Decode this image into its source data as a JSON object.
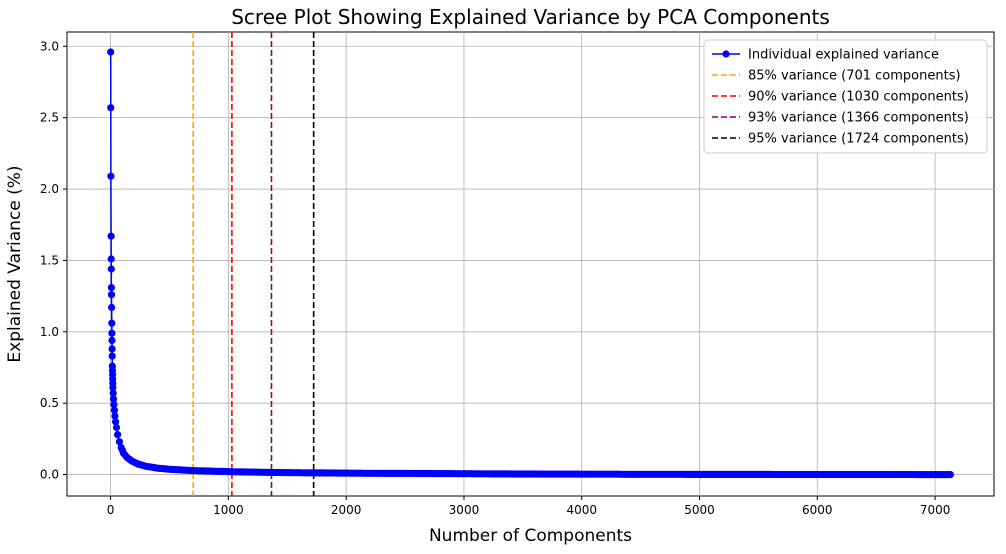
{
  "chart_data": {
    "type": "line",
    "title": "Scree Plot Showing Explained Variance by PCA Components",
    "xlabel": "Number of Components",
    "ylabel": "Explained Variance (%)",
    "xlim": [
      -370,
      7500
    ],
    "ylim": [
      -0.15,
      3.1
    ],
    "xticks": [
      0,
      1000,
      2000,
      3000,
      4000,
      5000,
      6000,
      7000
    ],
    "yticks": [
      0.0,
      0.5,
      1.0,
      1.5,
      2.0,
      2.5,
      3.0
    ],
    "grid": true,
    "legend_position": "top-right",
    "series": [
      {
        "name": "Individual explained variance",
        "color": "#0000ff",
        "marker": "circle",
        "points": [
          [
            1,
            2.96
          ],
          [
            2,
            2.57
          ],
          [
            3,
            2.09
          ],
          [
            4,
            1.67
          ],
          [
            5,
            1.51
          ],
          [
            6,
            1.44
          ],
          [
            7,
            1.31
          ],
          [
            8,
            1.26
          ],
          [
            9,
            1.17
          ],
          [
            10,
            1.06
          ],
          [
            11,
            0.99
          ],
          [
            12,
            0.94
          ],
          [
            13,
            0.88
          ],
          [
            14,
            0.83
          ],
          [
            15,
            0.76
          ],
          [
            16,
            0.73
          ],
          [
            17,
            0.7
          ],
          [
            18,
            0.67
          ],
          [
            19,
            0.64
          ],
          [
            20,
            0.61
          ],
          [
            22,
            0.57
          ],
          [
            25,
            0.53
          ],
          [
            28,
            0.49
          ],
          [
            32,
            0.45
          ],
          [
            37,
            0.41
          ],
          [
            43,
            0.37
          ],
          [
            50,
            0.33
          ],
          [
            60,
            0.28
          ],
          [
            75,
            0.23
          ],
          [
            90,
            0.19
          ],
          [
            110,
            0.15
          ],
          [
            140,
            0.12
          ],
          [
            180,
            0.095
          ],
          [
            230,
            0.075
          ],
          [
            300,
            0.058
          ],
          [
            400,
            0.045
          ],
          [
            500,
            0.037
          ],
          [
            701,
            0.028
          ],
          [
            1030,
            0.02
          ],
          [
            1366,
            0.015
          ],
          [
            1724,
            0.012
          ],
          [
            2200,
            0.009
          ],
          [
            2800,
            0.007
          ],
          [
            3500,
            0.004
          ],
          [
            4500,
            0.002
          ],
          [
            5500,
            0.001
          ],
          [
            6500,
            0.0005
          ],
          [
            7130,
            0.0
          ]
        ]
      }
    ],
    "threshold_lines": [
      {
        "label": "85% variance (701 components)",
        "x": 701,
        "color": "#ffa500"
      },
      {
        "label": "90% variance (1030 components)",
        "x": 1030,
        "color": "#ff0000"
      },
      {
        "label": "93% variance (1366 components)",
        "x": 1366,
        "color": "#800080"
      },
      {
        "label": "95% variance (1724 components)",
        "x": 1724,
        "color": "#000000"
      }
    ]
  }
}
